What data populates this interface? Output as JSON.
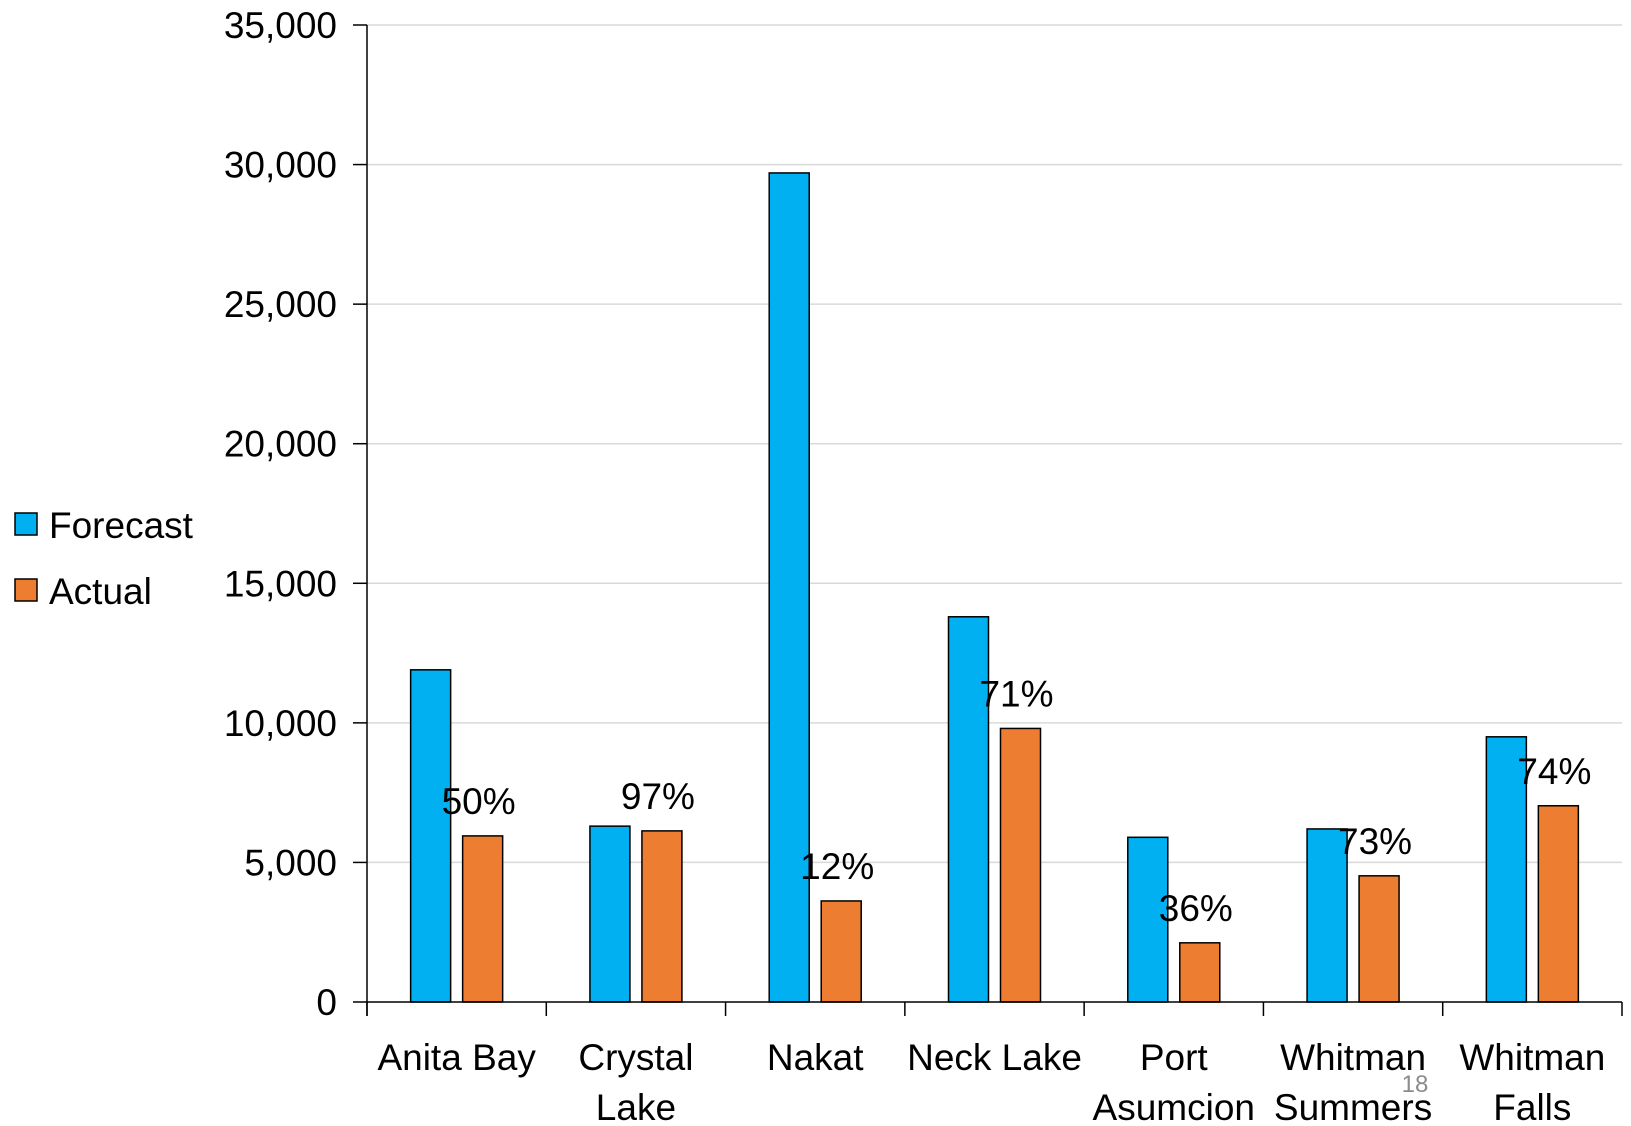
{
  "chart_data": {
    "type": "bar",
    "categories": [
      [
        "Anita Bay"
      ],
      [
        "Crystal",
        "Lake"
      ],
      [
        "Nakat"
      ],
      [
        "Neck Lake"
      ],
      [
        "Port",
        "Asumcion"
      ],
      [
        "Whitman",
        "Summers"
      ],
      [
        "Whitman",
        "Falls"
      ]
    ],
    "series": [
      {
        "name": "Forecast",
        "color": "#00b0f0",
        "values": [
          11900,
          6300,
          29700,
          13800,
          5900,
          6200,
          9500
        ]
      },
      {
        "name": "Actual",
        "color": "#ed7d31",
        "values": [
          5950,
          6130,
          3620,
          9800,
          2120,
          4520,
          7030
        ]
      }
    ],
    "data_labels": [
      "50%",
      "97%",
      "12%",
      "71%",
      "36%",
      "73%",
      "74%"
    ],
    "y_ticks": [
      "0",
      "5,000",
      "10,000",
      "15,000",
      "20,000",
      "25,000",
      "30,000",
      "35,000"
    ],
    "ylim": [
      0,
      35000
    ],
    "grid": true,
    "legend_position": "left",
    "title": "",
    "xlabel": "",
    "ylabel": ""
  },
  "page_number": "18"
}
